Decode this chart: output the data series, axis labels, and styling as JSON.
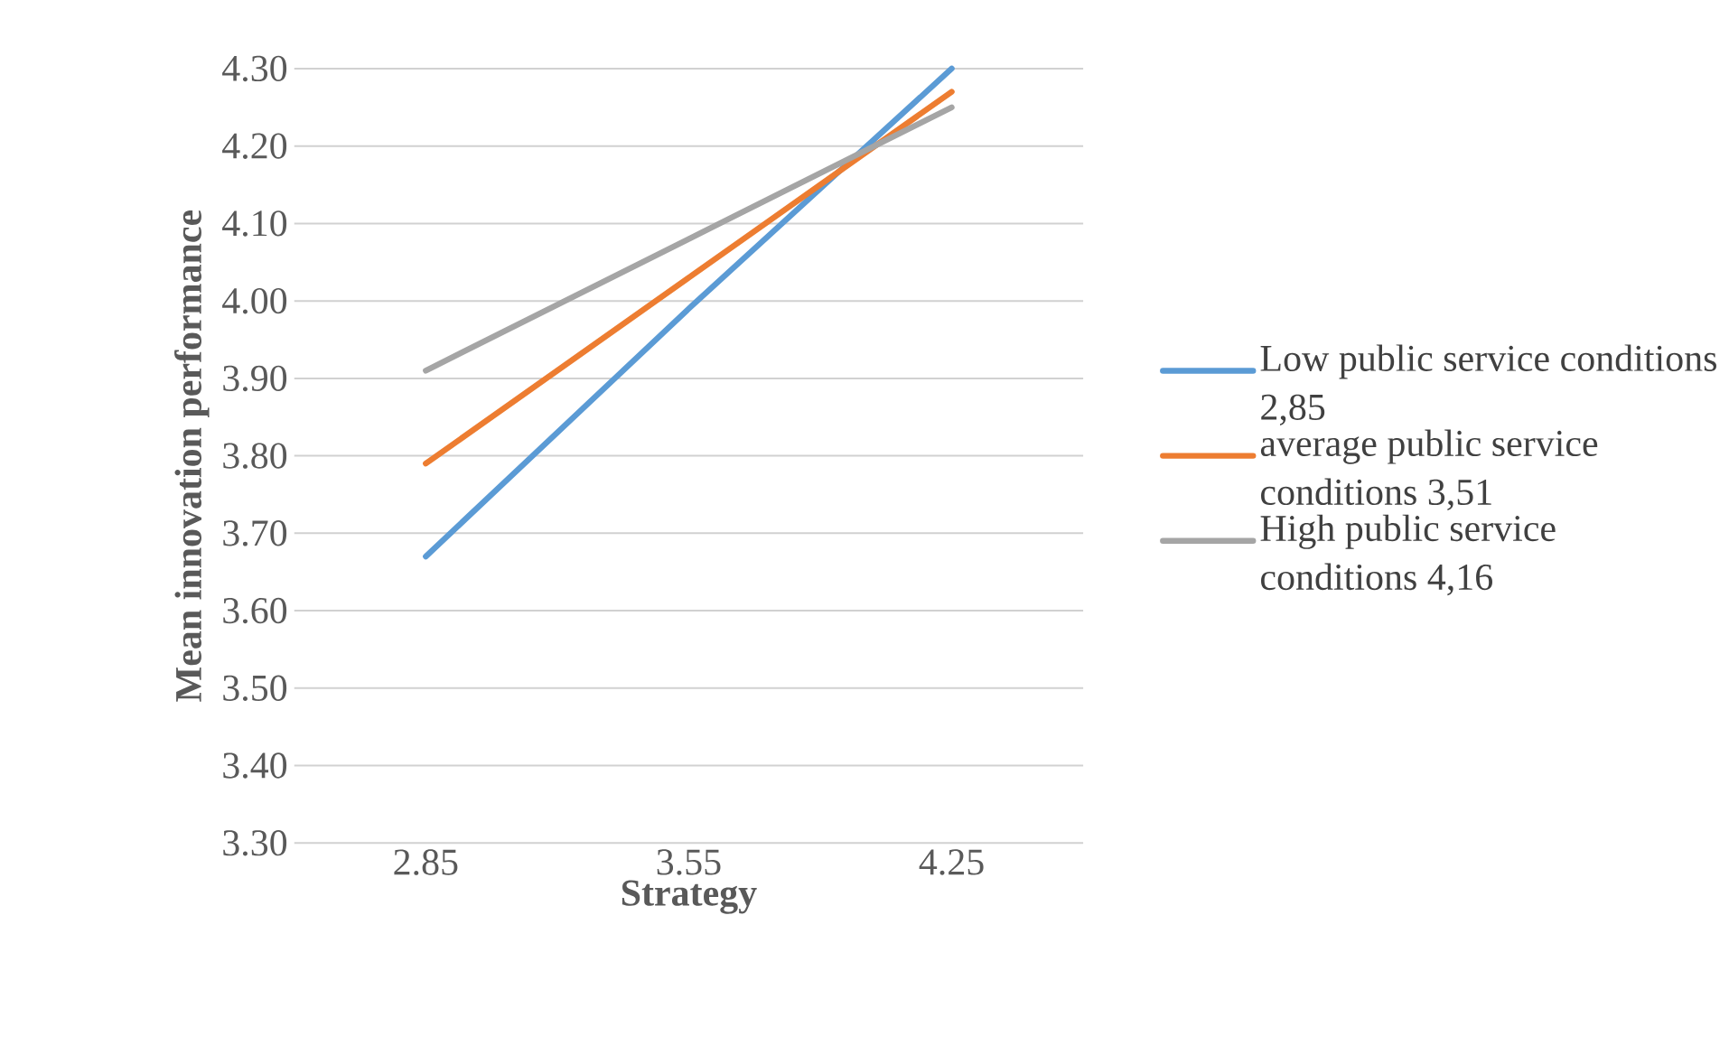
{
  "chart_data": {
    "type": "line",
    "xlabel": "Strategy",
    "ylabel": "Mean innovation performance",
    "categories": [
      "2.85",
      "3.55",
      "4.25"
    ],
    "series": [
      {
        "name": "Low public service conditions  2,85",
        "color": "#5b9bd5",
        "values": [
          3.67,
          3.99,
          4.3
        ]
      },
      {
        "name": "average public service conditions  3,51",
        "color": "#ed7d31",
        "values": [
          3.79,
          4.03,
          4.27
        ]
      },
      {
        "name": "High public service conditions  4,16",
        "color": "#a5a5a5",
        "values": [
          3.91,
          4.08,
          4.25
        ]
      }
    ],
    "ylim": [
      3.3,
      4.3
    ],
    "yticks": [
      {
        "value": 3.3,
        "label": "3.30"
      },
      {
        "value": 3.4,
        "label": "3.40"
      },
      {
        "value": 3.5,
        "label": "3.50"
      },
      {
        "value": 3.6,
        "label": "3.60"
      },
      {
        "value": 3.7,
        "label": "3.70"
      },
      {
        "value": 3.8,
        "label": "3.80"
      },
      {
        "value": 3.9,
        "label": "3.90"
      },
      {
        "value": 4.0,
        "label": "4.00"
      },
      {
        "value": 4.1,
        "label": "4.10"
      },
      {
        "value": 4.2,
        "label": "4.20"
      },
      {
        "value": 4.3,
        "label": "4.30"
      }
    ],
    "grid": "y",
    "legend": "right",
    "marker": "none",
    "line_style": "solid"
  }
}
